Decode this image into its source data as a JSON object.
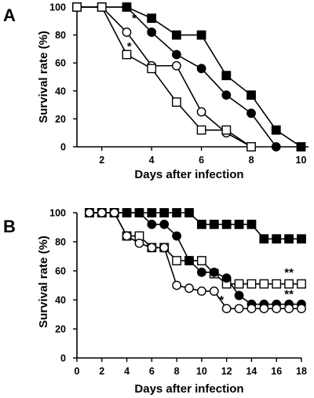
{
  "chart_data": [
    {
      "panel": "A",
      "type": "line",
      "xlabel": "Days after infection",
      "ylabel": "Survival rate (%)",
      "xlim": [
        1,
        10.3
      ],
      "ylim": [
        0,
        100
      ],
      "xticks": [
        2,
        4,
        6,
        8,
        10
      ],
      "yticks": [
        0,
        20,
        40,
        60,
        80,
        100
      ],
      "grid": false,
      "series": [
        {
          "marker": "filled-square",
          "x": [
            1,
            2,
            3,
            4,
            5,
            6,
            7,
            8,
            9,
            10
          ],
          "y": [
            100,
            100,
            100,
            92,
            80,
            80,
            51,
            37,
            12,
            0
          ]
        },
        {
          "marker": "filled-circle",
          "x": [
            1,
            2,
            3,
            4,
            5,
            6,
            7,
            8,
            9
          ],
          "y": [
            100,
            100,
            100,
            82,
            66,
            56,
            37,
            24,
            0
          ]
        },
        {
          "marker": "open-circle",
          "x": [
            1,
            2,
            3,
            4,
            5,
            6,
            7,
            8
          ],
          "y": [
            100,
            100,
            82,
            58,
            58,
            25,
            10,
            0
          ]
        },
        {
          "marker": "open-square",
          "x": [
            1,
            2,
            3,
            4,
            5,
            6,
            7,
            8
          ],
          "y": [
            100,
            100,
            66,
            56,
            32,
            12,
            12,
            0
          ]
        }
      ],
      "annotations": [
        {
          "text": "*",
          "x": 3.3,
          "y": 92
        },
        {
          "text": "*",
          "x": 3.1,
          "y": 72
        }
      ]
    },
    {
      "panel": "B",
      "type": "line",
      "xlabel": "Days after infection",
      "ylabel": "Survival rate (%)",
      "xlim": [
        0,
        18
      ],
      "ylim": [
        0,
        100
      ],
      "xticks": [
        0,
        2,
        4,
        6,
        8,
        10,
        12,
        14,
        16,
        18
      ],
      "yticks": [
        0,
        20,
        40,
        60,
        80,
        100
      ],
      "grid": false,
      "series": [
        {
          "marker": "filled-square",
          "x": [
            1,
            2,
            3,
            4,
            5,
            6,
            7,
            8,
            9,
            10,
            11,
            12,
            13,
            14,
            15,
            16,
            17,
            18
          ],
          "y": [
            100,
            100,
            100,
            100,
            100,
            100,
            100,
            100,
            100,
            92,
            92,
            92,
            92,
            92,
            82,
            82,
            82,
            82
          ]
        },
        {
          "marker": "open-square",
          "x": [
            1,
            2,
            3,
            4,
            5,
            6,
            7,
            8,
            9,
            10,
            11,
            12,
            13,
            14,
            15,
            16,
            17,
            18
          ],
          "y": [
            100,
            100,
            100,
            84,
            84,
            76,
            76,
            67,
            67,
            67,
            58,
            51,
            51,
            51,
            51,
            51,
            51,
            51
          ]
        },
        {
          "marker": "filled-circle",
          "x": [
            1,
            2,
            3,
            4,
            5,
            6,
            7,
            8,
            9,
            10,
            11,
            12,
            13,
            14,
            15,
            16,
            17,
            18
          ],
          "y": [
            100,
            100,
            100,
            100,
            100,
            92,
            92,
            84,
            67,
            59,
            59,
            55,
            43,
            37,
            37,
            37,
            37,
            37
          ]
        },
        {
          "marker": "open-circle",
          "x": [
            1,
            2,
            3,
            4,
            5,
            6,
            7,
            8,
            9,
            10,
            11,
            12,
            13,
            14,
            15,
            16,
            17,
            18
          ],
          "y": [
            100,
            100,
            100,
            84,
            79,
            76,
            76,
            50,
            48,
            46,
            46,
            34,
            34,
            34,
            34,
            34,
            34,
            34
          ]
        }
      ],
      "annotations": [
        {
          "text": "**",
          "x": 17,
          "y": 59
        },
        {
          "text": "**",
          "x": 17,
          "y": 44
        },
        {
          "text": "*",
          "x": 11.6,
          "y": 40
        }
      ]
    }
  ]
}
